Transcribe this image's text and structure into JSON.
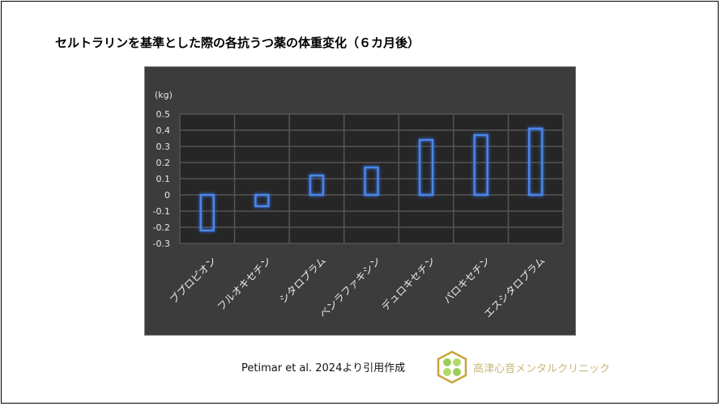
{
  "title": "セルトラリンを基準とした際の各抗うつ薬の体重変化（６カ月後）",
  "citation": "Petimar et al. 2024より引用作成",
  "clinic_name": "高津心音メンタルクリニック",
  "colors": {
    "background": "#3c3c3c",
    "plot": "#262626",
    "bar_outline": "#4a86e8",
    "grid": "#555555",
    "text": "#e8e8e8"
  },
  "chart_data": {
    "type": "bar",
    "title": "",
    "ylabel": "(kg)",
    "xlabel": "",
    "ylim": [
      -0.3,
      0.5
    ],
    "yticks": [
      "0.5",
      "0.4",
      "0.3",
      "0.2",
      "0.1",
      "0",
      "-0.1",
      "-0.2",
      "-0.3"
    ],
    "grid": true,
    "categories": [
      "ブプロピオン",
      "フルオキセチン",
      "シタロプラム",
      "ベンラファキシン",
      "デュロキセチン",
      "パロキセチン",
      "エスシタロプラム"
    ],
    "values": [
      -0.22,
      -0.07,
      0.12,
      0.17,
      0.34,
      0.37,
      0.41
    ]
  }
}
